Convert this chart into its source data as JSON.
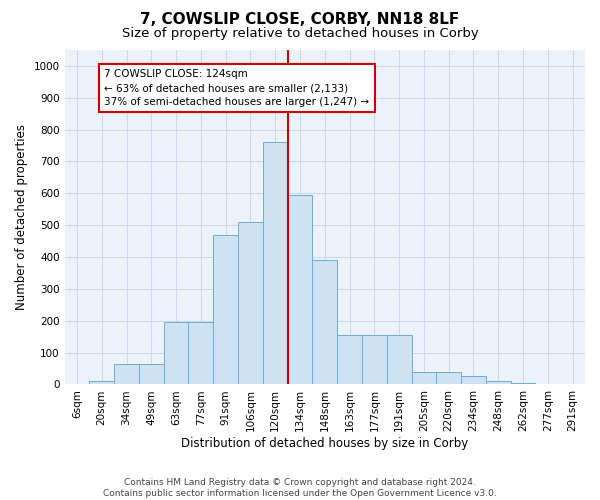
{
  "title": "7, COWSLIP CLOSE, CORBY, NN18 8LF",
  "subtitle": "Size of property relative to detached houses in Corby",
  "xlabel": "Distribution of detached houses by size in Corby",
  "ylabel": "Number of detached properties",
  "footer_line1": "Contains HM Land Registry data © Crown copyright and database right 2024.",
  "footer_line2": "Contains public sector information licensed under the Open Government Licence v3.0.",
  "bar_labels": [
    "6sqm",
    "20sqm",
    "34sqm",
    "49sqm",
    "63sqm",
    "77sqm",
    "91sqm",
    "106sqm",
    "120sqm",
    "134sqm",
    "148sqm",
    "163sqm",
    "177sqm",
    "191sqm",
    "205sqm",
    "220sqm",
    "234sqm",
    "248sqm",
    "262sqm",
    "277sqm",
    "291sqm"
  ],
  "bar_values": [
    0,
    10,
    65,
    65,
    195,
    195,
    470,
    510,
    760,
    595,
    390,
    155,
    155,
    155,
    40,
    40,
    25,
    10,
    5,
    2,
    0
  ],
  "bar_color": "#cfe2f3",
  "bar_edge_color": "#6aafd6",
  "vline_color": "#cc0000",
  "annotation_text": "7 COWSLIP CLOSE: 124sqm\n← 63% of detached houses are smaller (2,133)\n37% of semi-detached houses are larger (1,247) →",
  "annotation_box_color": "#cc0000",
  "ylim": [
    0,
    1050
  ],
  "yticks": [
    0,
    100,
    200,
    300,
    400,
    500,
    600,
    700,
    800,
    900,
    1000
  ],
  "grid_color": "#ccd8ea",
  "background_color": "#edf2fa",
  "title_fontsize": 11,
  "subtitle_fontsize": 9.5,
  "axis_label_fontsize": 8.5,
  "tick_fontsize": 7.5,
  "footer_fontsize": 6.5
}
